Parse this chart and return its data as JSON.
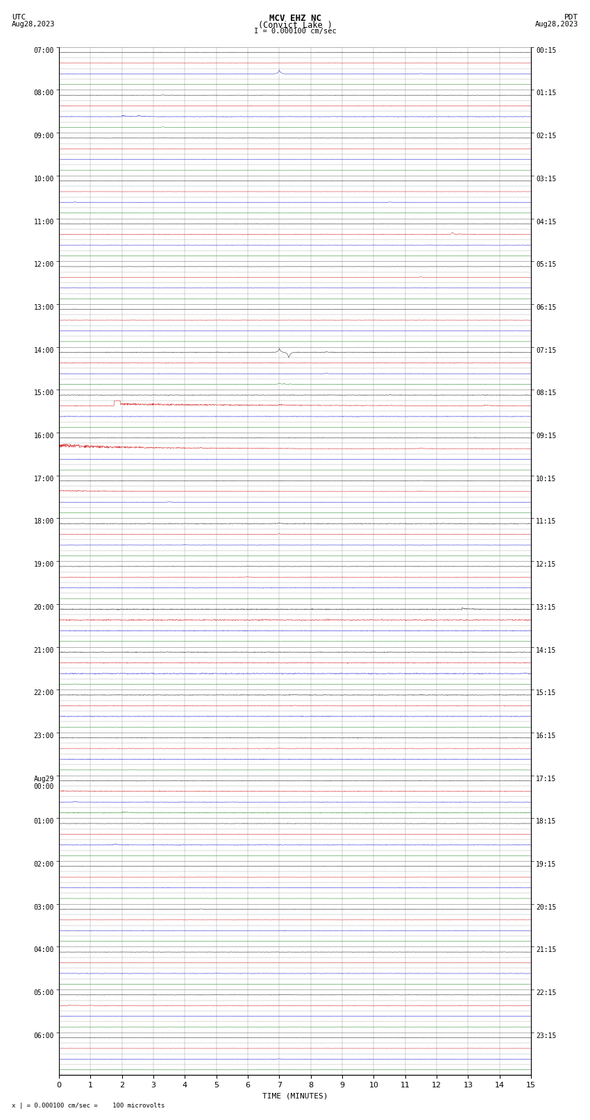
{
  "title_line1": "MCV EHZ NC",
  "title_line2": "(Convict Lake )",
  "scale_text": "I = 0.000100 cm/sec",
  "bottom_note": "x | = 0.000100 cm/sec =    100 microvolts",
  "xlabel": "TIME (MINUTES)",
  "utc_times_labeled": [
    "07:00",
    "08:00",
    "09:00",
    "10:00",
    "11:00",
    "12:00",
    "13:00",
    "14:00",
    "15:00",
    "16:00",
    "17:00",
    "18:00",
    "19:00",
    "20:00",
    "21:00",
    "22:00",
    "23:00",
    "Aug29\n00:00",
    "01:00",
    "02:00",
    "03:00",
    "04:00",
    "05:00",
    "06:00"
  ],
  "pdt_times_labeled": [
    "00:15",
    "01:15",
    "02:15",
    "03:15",
    "04:15",
    "05:15",
    "06:15",
    "07:15",
    "08:15",
    "09:15",
    "10:15",
    "11:15",
    "12:15",
    "13:15",
    "14:15",
    "15:15",
    "16:15",
    "17:15",
    "18:15",
    "19:15",
    "20:15",
    "21:15",
    "22:15",
    "23:15"
  ],
  "n_slots": 24,
  "n_traces_per_slot": 4,
  "n_minutes": 15,
  "background_color": "#ffffff",
  "grid_color": "#808080",
  "trace_colors": [
    "#000000",
    "#cc0000",
    "#0000cc",
    "#007700"
  ],
  "fig_width": 8.5,
  "fig_height": 16.13
}
